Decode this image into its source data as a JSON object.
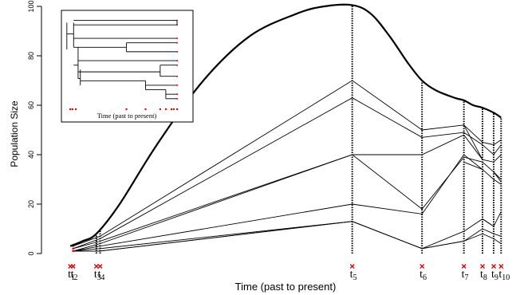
{
  "chart_data": [
    {
      "type": "line",
      "xlabel": "Time (past to present)",
      "ylabel": "Population Size",
      "ylim": [
        0,
        100
      ],
      "yticks": [
        0,
        20,
        40,
        60,
        80,
        100
      ],
      "sample_times": [
        {
          "label": "t",
          "sub": "1",
          "x": 0.7
        },
        {
          "label": "t",
          "sub": "2",
          "x": 1.0
        },
        {
          "label": "t",
          "sub": "3",
          "x": 3.5
        },
        {
          "label": "t",
          "sub": "4",
          "x": 3.9
        },
        {
          "label": "t",
          "sub": "5",
          "x": 31.0
        },
        {
          "label": "t",
          "sub": "6",
          "x": 38.5
        },
        {
          "label": "t",
          "sub": "7",
          "x": 43.0
        },
        {
          "label": "t",
          "sub": "8",
          "x": 45.0
        },
        {
          "label": "t",
          "sub": "9",
          "x": 46.2
        },
        {
          "label": "t",
          "sub": "10",
          "x": 47.0
        }
      ],
      "population_curve": {
        "x": [
          0.7,
          2,
          3.5,
          6,
          10,
          15,
          20,
          25,
          28,
          31,
          33,
          35,
          37,
          38.5,
          40,
          42,
          43,
          44,
          45,
          46.2,
          47
        ],
        "y": [
          3,
          5,
          8,
          20,
          44,
          70,
          88,
          97,
          100,
          100.5,
          97,
          88,
          77,
          70,
          66,
          63,
          62,
          60,
          59,
          57,
          55
        ]
      },
      "lineage_x": [
        1.0,
        3.9,
        31.0,
        38.5,
        43.0,
        45.0,
        46.2,
        47.0
      ],
      "series": [
        {
          "values": [
            3,
            7,
            70,
            50,
            52,
            45,
            44,
            46
          ]
        },
        {
          "values": [
            2,
            6,
            63,
            47,
            49,
            44,
            40,
            44
          ]
        },
        {
          "values": [
            2,
            5,
            40,
            40,
            48,
            38,
            37,
            40
          ]
        },
        {
          "values": [
            1,
            4,
            40,
            18,
            39,
            37,
            33,
            29
          ]
        },
        {
          "values": [
            1,
            3,
            20,
            16,
            40,
            34,
            30,
            28
          ]
        },
        {
          "values": [
            1,
            2,
            13,
            2,
            9,
            14,
            11,
            17
          ]
        },
        {
          "values": [
            1,
            1,
            13,
            2,
            5,
            10,
            8,
            7
          ]
        },
        {
          "values": [
            1,
            1,
            13,
            2,
            5,
            8,
            6,
            4
          ]
        }
      ],
      "extra_segments": [
        {
          "x": [
            43.0,
            45.0
          ],
          "y": [
            52,
            38
          ]
        },
        {
          "x": [
            43.0,
            45.0
          ],
          "y": [
            37,
            34
          ]
        },
        {
          "x": [
            45.0,
            46.2
          ],
          "y": [
            14,
            11
          ]
        },
        {
          "x": [
            46.2,
            47.0
          ],
          "y": [
            33,
            30
          ]
        }
      ],
      "colors": {
        "line": "#000000",
        "marker": "#e00000"
      }
    },
    {
      "type": "tree",
      "xlabel": "Time (past to present)",
      "ylim": [
        57,
        98
      ],
      "tree_edges": [
        {
          "x1": 0.08,
          "x2": 1.0,
          "y": 94
        },
        {
          "x1": 0.08,
          "x2": 1.0,
          "y": 96
        },
        {
          "x1": 0.08,
          "x2": 1.0,
          "y": 88
        },
        {
          "x1": 0.08,
          "x2": 0.55,
          "y": 84
        },
        {
          "x1": 0.55,
          "x2": 1.0,
          "y": 82
        },
        {
          "x1": 0.55,
          "x2": 1.0,
          "y": 86
        },
        {
          "x1": 0.12,
          "x2": 1.0,
          "y": 78
        },
        {
          "x1": 0.12,
          "x2": 0.85,
          "y": 73
        },
        {
          "x1": 0.85,
          "x2": 1.0,
          "y": 71
        },
        {
          "x1": 0.85,
          "x2": 1.0,
          "y": 76
        },
        {
          "x1": 0.14,
          "x2": 0.72,
          "y": 69
        },
        {
          "x1": 0.72,
          "x2": 1.0,
          "y": 67
        },
        {
          "x1": 0.72,
          "x2": 0.9,
          "y": 65
        },
        {
          "x1": 0.9,
          "x2": 1.0,
          "y": 63
        },
        {
          "x1": 0.9,
          "x2": 1.0,
          "y": 61
        },
        {
          "x1": 0.02,
          "x2": 0.08,
          "y": 90
        },
        {
          "x1": 0.08,
          "x2": 0.12,
          "y": 76
        },
        {
          "x1": 0.12,
          "x2": 0.14,
          "y": 70
        }
      ],
      "tree_verticals": [
        {
          "x": 0.02,
          "y1": 83,
          "y2": 95
        },
        {
          "x": 0.08,
          "y1": 84,
          "y2": 95
        },
        {
          "x": 0.12,
          "y1": 70,
          "y2": 84
        },
        {
          "x": 0.14,
          "y1": 67,
          "y2": 74
        },
        {
          "x": 0.55,
          "y1": 82,
          "y2": 86
        },
        {
          "x": 0.85,
          "y1": 71,
          "y2": 76
        },
        {
          "x": 0.72,
          "y1": 65,
          "y2": 69
        },
        {
          "x": 0.9,
          "y1": 61,
          "y2": 65
        },
        {
          "x": 1.0,
          "y1": 94,
          "y2": 96
        }
      ],
      "tip_times": [
        0.05,
        0.07,
        0.1,
        0.55,
        0.72,
        0.85,
        0.9,
        0.95,
        0.97,
        1.0
      ]
    }
  ]
}
